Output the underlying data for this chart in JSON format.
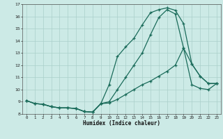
{
  "xlabel": "Humidex (Indice chaleur)",
  "bg_color": "#cceae6",
  "grid_color": "#aacfca",
  "line_color": "#1a6b5a",
  "xlim": [
    -0.5,
    23.5
  ],
  "ylim": [
    8,
    17
  ],
  "xticks": [
    0,
    1,
    2,
    3,
    4,
    5,
    6,
    7,
    8,
    9,
    10,
    11,
    12,
    13,
    14,
    15,
    16,
    17,
    18,
    19,
    20,
    21,
    22,
    23
  ],
  "yticks": [
    8,
    9,
    10,
    11,
    12,
    13,
    14,
    15,
    16,
    17
  ],
  "line1_x": [
    0,
    1,
    2,
    3,
    4,
    5,
    6,
    7,
    8,
    9,
    10,
    11,
    12,
    13,
    14,
    15,
    16,
    17,
    18,
    19,
    20,
    21,
    22,
    23
  ],
  "line1_y": [
    9.1,
    8.85,
    8.8,
    8.6,
    8.5,
    8.5,
    8.45,
    8.2,
    8.15,
    8.85,
    10.4,
    12.7,
    13.5,
    14.2,
    15.3,
    16.3,
    16.55,
    16.7,
    16.5,
    15.4,
    12.1,
    11.1,
    10.5,
    10.5
  ],
  "line2_x": [
    0,
    1,
    2,
    3,
    4,
    5,
    6,
    7,
    8,
    9,
    10,
    11,
    12,
    13,
    14,
    15,
    16,
    17,
    18,
    19,
    20,
    21,
    22,
    23
  ],
  "line2_y": [
    9.1,
    8.85,
    8.8,
    8.6,
    8.5,
    8.5,
    8.45,
    8.2,
    8.15,
    8.85,
    9.0,
    10.0,
    11.0,
    12.0,
    13.0,
    14.5,
    15.9,
    16.55,
    16.2,
    13.4,
    12.1,
    11.1,
    10.5,
    10.5
  ],
  "line3_x": [
    0,
    1,
    2,
    3,
    4,
    5,
    6,
    7,
    8,
    9,
    10,
    11,
    12,
    13,
    14,
    15,
    16,
    17,
    18,
    19,
    20,
    21,
    22,
    23
  ],
  "line3_y": [
    9.1,
    8.85,
    8.8,
    8.6,
    8.5,
    8.5,
    8.45,
    8.2,
    8.15,
    8.85,
    8.9,
    9.2,
    9.6,
    10.0,
    10.4,
    10.7,
    11.1,
    11.5,
    12.0,
    13.4,
    10.4,
    10.1,
    10.0,
    10.5
  ]
}
